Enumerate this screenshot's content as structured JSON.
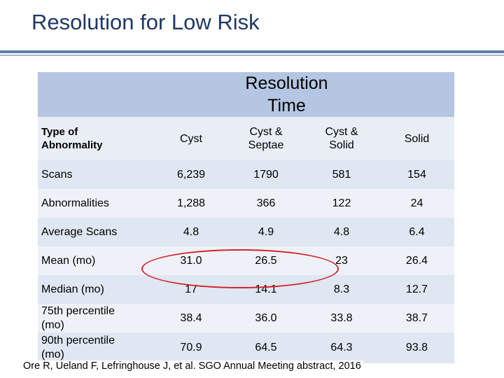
{
  "slide": {
    "title": "Resolution for Low Risk"
  },
  "table": {
    "band_title_line1": "Resolution",
    "band_title_line2": "Time",
    "columns": [
      "Type of Abnormality",
      "Cyst",
      "Cyst & Septae",
      "Cyst & Solid",
      "Solid"
    ],
    "column_lines": {
      "type_line1": "Type of",
      "type_line2": "Abnormality",
      "septae_line1": "Cyst &",
      "septae_line2": "Septae",
      "cystsolid_line1": "Cyst &",
      "cystsolid_line2": "Solid"
    },
    "rows": [
      {
        "label": "Scans",
        "values": [
          "6,239",
          "1790",
          "581",
          "154"
        ]
      },
      {
        "label": "Abnormalities",
        "values": [
          "1,288",
          "366",
          "122",
          "24"
        ]
      },
      {
        "label": "Average Scans",
        "values": [
          "4.8",
          "4.9",
          "4.8",
          "6.4"
        ]
      },
      {
        "label": "Mean (mo)",
        "values": [
          "31.0",
          "26.5",
          "23",
          "26.4"
        ]
      },
      {
        "label": "Median (mo)",
        "values": [
          "17",
          "14.1",
          "8.3",
          "12.7"
        ]
      },
      {
        "label": "75th percentile (mo)",
        "values": [
          "38.4",
          "36.0",
          "33.8",
          "38.7"
        ]
      },
      {
        "label": "90th percentile (mo)",
        "values": [
          "70.9",
          "64.5",
          "64.3",
          "93.8"
        ]
      }
    ],
    "row_lines": {
      "p75_line1": "75th percentile",
      "p75_line2": "(mo)",
      "p90_line1": "90th percentile",
      "p90_line2": "(mo)"
    }
  },
  "annotation": {
    "highlight_color": "#d6232a"
  },
  "citation": "Ore R, Ueland F, Lefringhouse J, et al. SGO Annual Meeting abstract, 2016",
  "colors": {
    "title": "#1f3864",
    "band": "#b4c6e1",
    "row_dark": "#dfe7f2",
    "row_light": "#eef2f8"
  }
}
